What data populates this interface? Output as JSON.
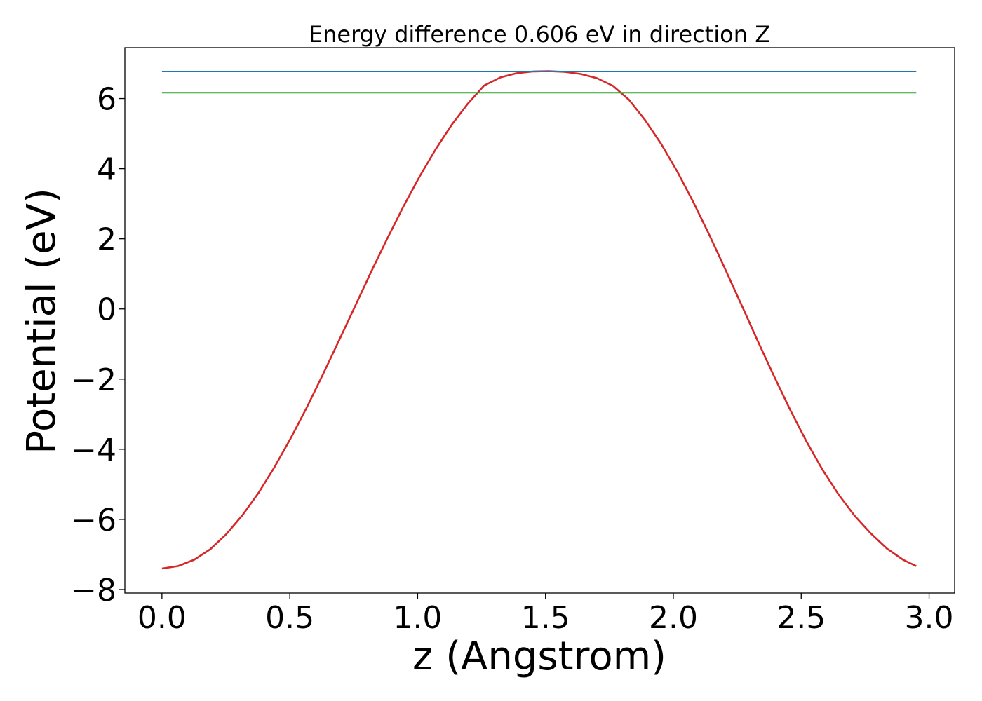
{
  "chart_data": {
    "type": "line",
    "title": "Energy difference 0.606 eV in direction Z",
    "xlabel": "z (Angstrom)",
    "ylabel": "Potential (eV)",
    "xlim": [
      -0.145,
      3.1
    ],
    "ylim": [
      -8.1,
      7.45
    ],
    "xticks": [
      0.0,
      0.5,
      1.0,
      1.5,
      2.0,
      2.5,
      3.0
    ],
    "xtick_labels": [
      "0.0",
      "0.5",
      "1.0",
      "1.5",
      "2.0",
      "2.5",
      "3.0"
    ],
    "yticks": [
      -8,
      -6,
      -4,
      -2,
      0,
      2,
      4,
      6
    ],
    "ytick_labels": [
      "−8",
      "−6",
      "−4",
      "−2",
      "0",
      "2",
      "4",
      "6"
    ],
    "grid": false,
    "legend": "none",
    "series": [
      {
        "color": "#d62728",
        "x": [
          0.0,
          0.063,
          0.126,
          0.189,
          0.252,
          0.315,
          0.378,
          0.441,
          0.504,
          0.567,
          0.63,
          0.693,
          0.756,
          0.819,
          0.882,
          0.945,
          1.008,
          1.071,
          1.134,
          1.197,
          1.26,
          1.323,
          1.386,
          1.449,
          1.512,
          1.575,
          1.638,
          1.701,
          1.764,
          1.827,
          1.89,
          1.953,
          2.016,
          2.079,
          2.142,
          2.205,
          2.268,
          2.331,
          2.394,
          2.457,
          2.52,
          2.583,
          2.646,
          2.709,
          2.772,
          2.835,
          2.898,
          2.95
        ],
        "y": [
          -7.4,
          -7.33,
          -7.15,
          -6.85,
          -6.42,
          -5.88,
          -5.24,
          -4.5,
          -3.68,
          -2.8,
          -1.86,
          -0.89,
          0.09,
          1.07,
          2.02,
          2.93,
          3.78,
          4.56,
          5.26,
          5.86,
          6.37,
          6.6,
          6.72,
          6.77,
          6.78,
          6.76,
          6.7,
          6.58,
          6.36,
          5.96,
          5.38,
          4.7,
          3.91,
          3.03,
          2.09,
          1.1,
          0.09,
          -0.93,
          -1.92,
          -2.88,
          -3.77,
          -4.58,
          -5.29,
          -5.9,
          -6.4,
          -6.83,
          -7.15,
          -7.33
        ]
      },
      {
        "color": "#1f77b4",
        "x": [
          0.0,
          2.95
        ],
        "y": [
          6.77,
          6.77
        ]
      },
      {
        "color": "#2ca02c",
        "x": [
          0.0,
          2.95
        ],
        "y": [
          6.164,
          6.164
        ]
      }
    ]
  }
}
